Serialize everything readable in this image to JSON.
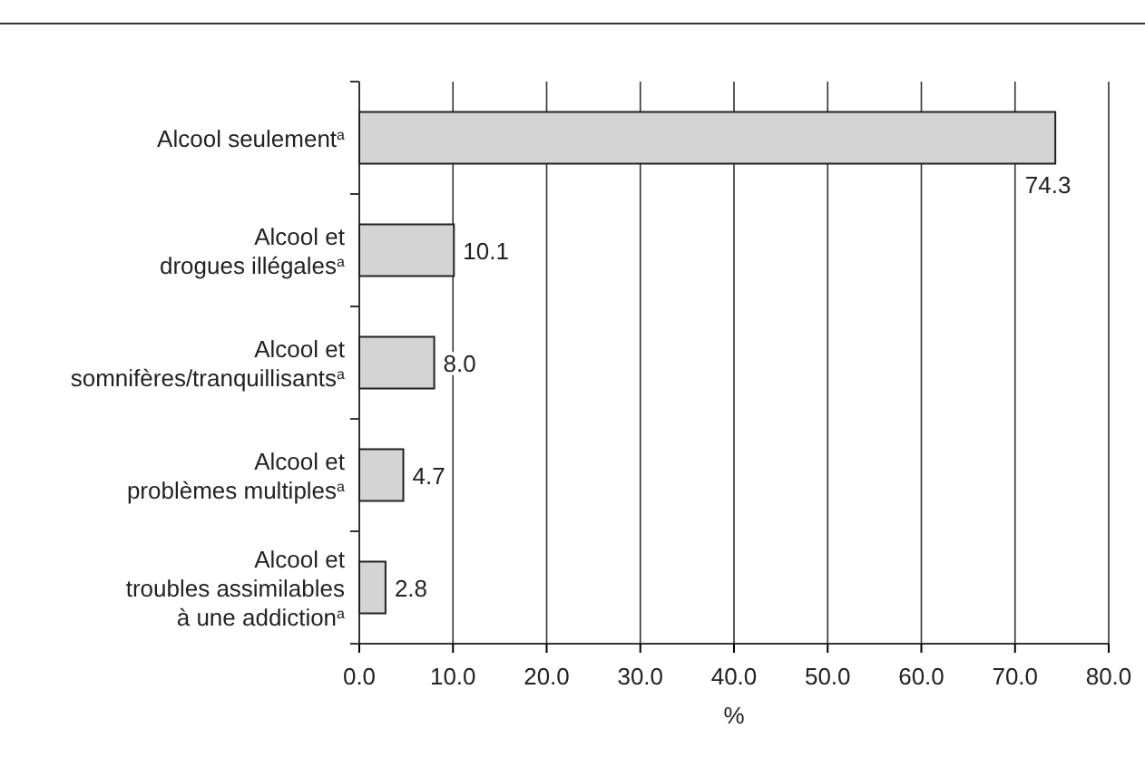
{
  "chart_data": {
    "type": "bar",
    "orientation": "horizontal",
    "categories": [
      "Alcool seulement$^{a}$",
      "Alcool et\ndrogues illégales$^{a}$",
      "Alcool et\nsomnifères/tranquillisants$^{a}$",
      "Alcool et\nproblèmes multiples$^{a}$",
      "Alcool et\ntroubles assimilables\nà une addiction$^{a}$"
    ],
    "values": [
      74.3,
      10.1,
      8.0,
      4.7,
      2.8
    ],
    "color": "#d4d4d4",
    "xlim": [
      0,
      80
    ],
    "xticks": [
      {
        "value": 0,
        "label": "0.0"
      },
      {
        "value": 10,
        "label": "10.0"
      },
      {
        "value": 20,
        "label": "20.0"
      },
      {
        "value": 30,
        "label": "30.0"
      },
      {
        "value": 40,
        "label": "40.0"
      },
      {
        "value": 50,
        "label": "50.0"
      },
      {
        "value": 60,
        "label": "60.0"
      },
      {
        "value": 70,
        "label": "70.0"
      },
      {
        "value": 80,
        "label": "80.0"
      }
    ],
    "value_labels": [
      "74.3",
      "10.1",
      "8.0",
      "4.7",
      "2.8"
    ],
    "xlabel": "%",
    "grid": "x"
  }
}
